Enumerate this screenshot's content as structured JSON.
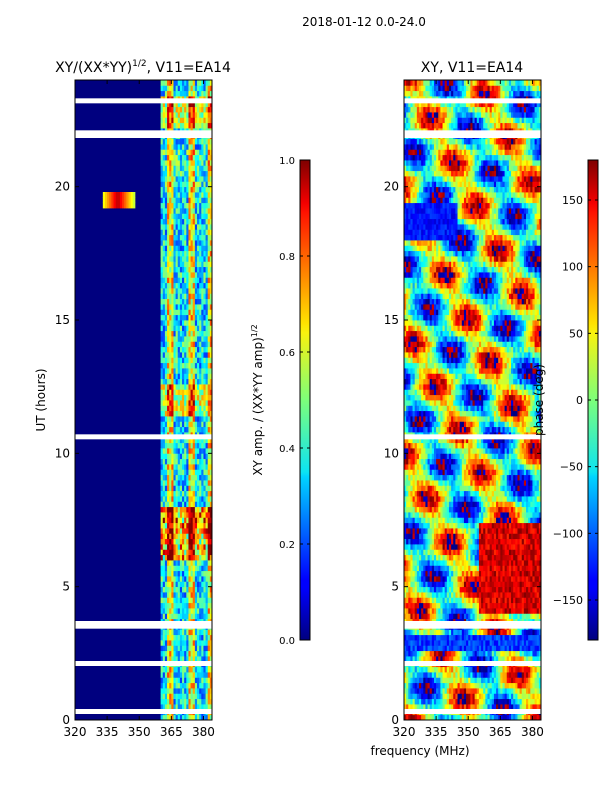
{
  "suptitle": "2018-01-12 0.0-24.0",
  "chart_data": [
    {
      "type": "heatmap",
      "title": "XY/(XX*YY)^1/2, V11=EA14",
      "title_main": "XY/(XX*YY)",
      "title_exp": "1/2",
      "title_rest": ", V11=EA14",
      "ylabel": "UT (hours)",
      "xlim": [
        320,
        384
      ],
      "ylim": [
        0,
        24
      ],
      "xticks": [
        320,
        335,
        350,
        365,
        380
      ],
      "yticks": [
        0,
        5,
        10,
        15,
        20
      ],
      "colorbar": {
        "label_main": "XY amp. / (XX*YY amp)",
        "label_exp": "1/2",
        "range": [
          0.0,
          1.0
        ],
        "ticks": [
          "0.0",
          "0.2",
          "0.4",
          "0.6",
          "0.8",
          "1.0"
        ]
      },
      "mostly_low_below_freq": 360,
      "bright_band_freq": [
        360,
        380
      ],
      "flagged_rows_hours": [
        0.3,
        2.1,
        3.5,
        3.6,
        10.6,
        21.9,
        22.0,
        23.2
      ]
    },
    {
      "type": "heatmap",
      "title": "XY, V11=EA14",
      "xlabel": "frequency (MHz)",
      "xlim": [
        320,
        384
      ],
      "ylim": [
        0,
        24
      ],
      "xticks": [
        320,
        335,
        350,
        365,
        380
      ],
      "yticks": [
        0,
        5,
        10,
        15,
        20
      ],
      "colorbar": {
        "label": "phase (deg)",
        "range": [
          -180,
          180
        ],
        "ticks": [
          "-150",
          "-100",
          "-50",
          "0",
          "50",
          "100",
          "150"
        ]
      },
      "flagged_rows_hours": [
        0.3,
        2.1,
        3.5,
        3.6,
        10.6,
        21.9,
        22.0,
        23.2
      ]
    }
  ]
}
